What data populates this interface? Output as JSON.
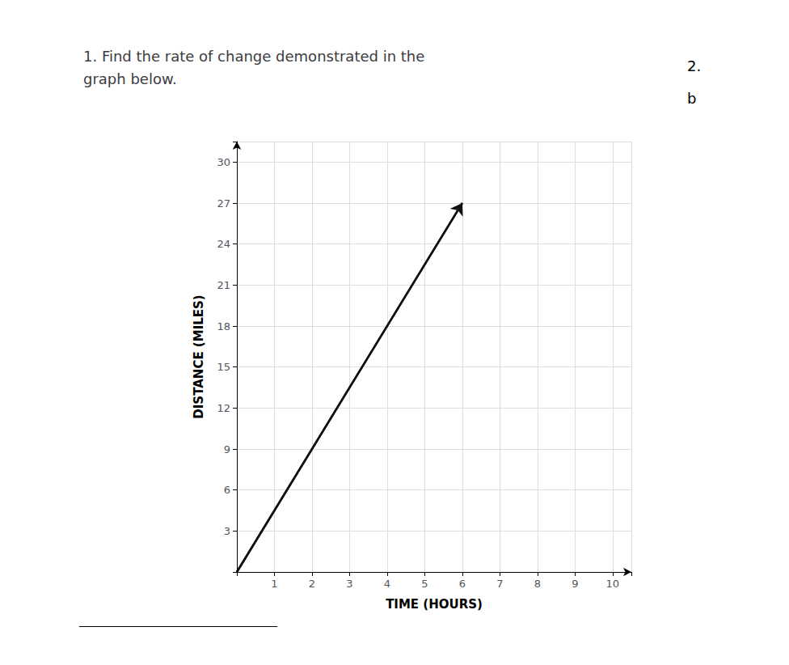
{
  "chart_data": {
    "type": "line",
    "title": "1. Find the rate of change demonstrated in the\ngraph below.",
    "annotations": [
      "2.",
      "b",
      "___________________________________"
    ],
    "xlabel": "TIME (HOURS)",
    "ylabel": "DISTANCE (MILES)",
    "x": [
      0,
      6.0
    ],
    "values": [
      0,
      27.0
    ],
    "color": "#111111",
    "xlim": [
      0,
      10.5
    ],
    "ylim": [
      0,
      31.5
    ],
    "xticks": [
      1,
      2,
      3,
      4,
      5,
      6,
      7,
      8,
      9,
      10
    ],
    "yticks": [
      3,
      6,
      9,
      12,
      15,
      18,
      21,
      24,
      27,
      30
    ],
    "grid": true
  }
}
